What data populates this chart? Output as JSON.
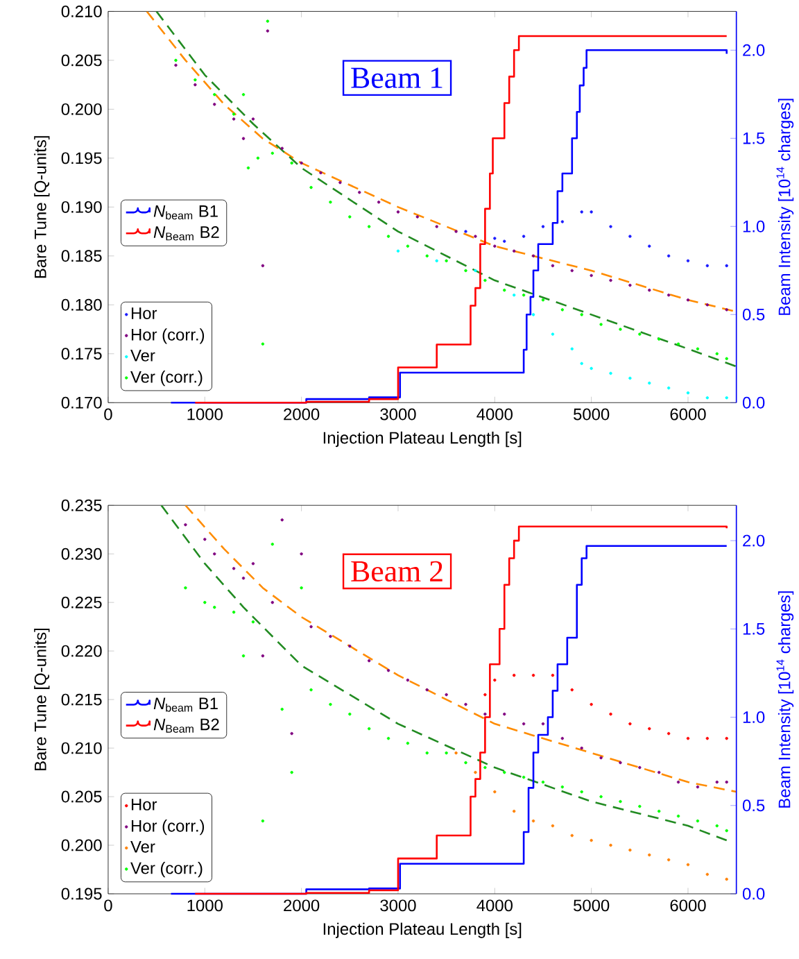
{
  "chart_data": [
    {
      "type": "scatter",
      "annotations": [
        "Beam 1"
      ],
      "xlabel": "Injection Plateau Length [s]",
      "ylabel": "Bare Tune [Q-units]",
      "y2label": "Beam Intensity [10$^{14}$ charges]",
      "xlim": [
        0,
        6500
      ],
      "xticks": [
        0,
        1000,
        2000,
        3000,
        4000,
        5000,
        6000
      ],
      "ylim": [
        0.17,
        0.21
      ],
      "yticks": [
        {
          "value": 0.17,
          "label": "0.170"
        },
        {
          "value": 0.175,
          "label": "0.175"
        },
        {
          "value": 0.18,
          "label": "0.180"
        },
        {
          "value": 0.185,
          "label": "0.185"
        },
        {
          "value": 0.19,
          "label": "0.190"
        },
        {
          "value": 0.195,
          "label": "0.195"
        },
        {
          "value": 0.2,
          "label": "0.200"
        },
        {
          "value": 0.205,
          "label": "0.205"
        },
        {
          "value": 0.21,
          "label": "0.210"
        }
      ],
      "y2lim": [
        0,
        2.22
      ],
      "y2ticks": [
        {
          "value": 0,
          "label": "0.0"
        },
        {
          "value": 0.5,
          "label": "0.5"
        },
        {
          "value": 1,
          "label": "1.0"
        },
        {
          "value": 1.5,
          "label": "1.5"
        },
        {
          "value": 2,
          "label": "2.0"
        }
      ],
      "legend": "left",
      "marker": "circle",
      "series": [
        {
          "name": "*N*$_{beam}$ B1",
          "type": "step",
          "axis": "y2",
          "marker": "none",
          "color": "#0000ff",
          "line_style": "solid",
          "x": [
            650,
            2050,
            2700,
            3020,
            4300,
            4330,
            4370,
            4400,
            4450,
            4600,
            4650,
            4700,
            4800,
            4850,
            4880,
            4920,
            4950,
            6400
          ],
          "values": [
            0,
            0.02,
            0.03,
            0.17,
            0.3,
            0.5,
            0.6,
            0.75,
            0.9,
            1.02,
            1.2,
            1.3,
            1.5,
            1.65,
            1.8,
            1.9,
            2.0,
            1.98
          ]
        },
        {
          "name": "*N*$_{Beam}$ B2",
          "type": "step",
          "axis": "y2",
          "marker": "none",
          "color": "#ff0000",
          "line_style": "solid",
          "x": [
            900,
            2050,
            2700,
            3000,
            3400,
            3750,
            3800,
            3850,
            3900,
            3950,
            3980,
            4100,
            4150,
            4200,
            4250,
            6400
          ],
          "values": [
            0,
            0.005,
            0.02,
            0.2,
            0.33,
            0.55,
            0.65,
            0.9,
            1.1,
            1.3,
            1.5,
            1.7,
            1.85,
            2.0,
            2.08,
            2.08
          ]
        },
        {
          "name": "Hor",
          "color": "#1a1aff",
          "x": [
            3700,
            4000,
            4100,
            4300,
            4500,
            4700,
            4900,
            5000,
            5200,
            5400,
            5600,
            5800,
            6000,
            6200,
            6400
          ],
          "values": [
            0.1875,
            0.1868,
            0.1865,
            0.187,
            0.188,
            0.1885,
            0.1895,
            0.1895,
            0.188,
            0.187,
            0.186,
            0.185,
            0.1845,
            0.184,
            0.184
          ]
        },
        {
          "name": "Hor (corr.)",
          "color": "#800080",
          "x": [
            700,
            900,
            1100,
            1300,
            1400,
            1500,
            1600,
            1650,
            1800,
            2000,
            2200,
            2400,
            2600,
            2800,
            3000,
            3200,
            3400,
            3600,
            3800,
            4000,
            4200,
            4400,
            4600,
            4800,
            5000,
            5200,
            5400,
            5600,
            5800,
            6000,
            6200,
            6400
          ],
          "values": [
            0.2045,
            0.2025,
            0.2005,
            0.199,
            0.197,
            0.199,
            0.184,
            0.208,
            0.196,
            0.1945,
            0.1935,
            0.1925,
            0.1915,
            0.1905,
            0.1895,
            0.189,
            0.188,
            0.1875,
            0.187,
            0.186,
            0.1855,
            0.185,
            0.184,
            0.1835,
            0.183,
            0.1825,
            0.182,
            0.1815,
            0.181,
            0.1805,
            0.18,
            0.1795
          ]
        },
        {
          "name": "Ver",
          "color": "#00ffff",
          "x": [
            3000,
            3400,
            3800,
            4200,
            4400,
            4600,
            4800,
            4900,
            5000,
            5200,
            5400,
            5600,
            5800,
            6000,
            6200,
            6400
          ],
          "values": [
            0.1855,
            0.1845,
            0.1835,
            0.181,
            0.179,
            0.177,
            0.1755,
            0.174,
            0.1735,
            0.173,
            0.1725,
            0.172,
            0.1715,
            0.171,
            0.1705,
            0.1705
          ]
        },
        {
          "name": "Ver (corr.)",
          "color": "#00ff00",
          "x": [
            700,
            900,
            1100,
            1300,
            1400,
            1450,
            1550,
            1600,
            1650,
            1700,
            1900,
            2100,
            2300,
            2500,
            2700,
            2900,
            3100,
            3300,
            3500,
            3700,
            3900,
            4100,
            4300,
            4500,
            4700,
            4900,
            5100,
            5300,
            5500,
            5700,
            5900,
            6100,
            6300,
            6400
          ],
          "values": [
            0.205,
            0.203,
            0.2015,
            0.1995,
            0.2015,
            0.194,
            0.195,
            0.176,
            0.209,
            0.1955,
            0.1945,
            0.192,
            0.1905,
            0.189,
            0.188,
            0.187,
            0.186,
            0.185,
            0.1845,
            0.1835,
            0.1825,
            0.1815,
            0.181,
            0.1805,
            0.1795,
            0.179,
            0.178,
            0.1775,
            0.177,
            0.1765,
            0.176,
            0.1755,
            0.175,
            0.1745
          ]
        },
        {
          "type": "line",
          "marker": "none",
          "color": "#ff8c00",
          "line_style": "dashed",
          "x": [
            400,
            800,
            1200,
            1600,
            2000,
            3000,
            4000,
            5000,
            6000,
            6500
          ],
          "values": [
            0.21,
            0.205,
            0.2005,
            0.197,
            0.1945,
            0.19,
            0.186,
            0.1835,
            0.1805,
            0.1793
          ]
        },
        {
          "type": "line",
          "marker": "none",
          "color": "#228b22",
          "line_style": "dashed",
          "x": [
            500,
            1000,
            1500,
            2000,
            3000,
            4000,
            5000,
            6000,
            6500
          ],
          "values": [
            0.21,
            0.2035,
            0.1985,
            0.194,
            0.1875,
            0.1825,
            0.179,
            0.1755,
            0.1737
          ]
        }
      ]
    },
    {
      "type": "scatter",
      "annotations": [
        "Beam 2"
      ],
      "xlabel": "Injection Plateau Length [s]",
      "ylabel": "Bare Tune [Q-units]",
      "y2label": "Beam Intensity [10$^{14}$ charges]",
      "xlim": [
        0,
        6500
      ],
      "xticks": [
        0,
        1000,
        2000,
        3000,
        4000,
        5000,
        6000
      ],
      "ylim": [
        0.195,
        0.235
      ],
      "yticks": [
        {
          "value": 0.195,
          "label": "0.195"
        },
        {
          "value": 0.2,
          "label": "0.200"
        },
        {
          "value": 0.205,
          "label": "0.205"
        },
        {
          "value": 0.21,
          "label": "0.210"
        },
        {
          "value": 0.215,
          "label": "0.215"
        },
        {
          "value": 0.22,
          "label": "0.220"
        },
        {
          "value": 0.225,
          "label": "0.225"
        },
        {
          "value": 0.23,
          "label": "0.230"
        },
        {
          "value": 0.235,
          "label": "0.235"
        }
      ],
      "y2lim": [
        0,
        2.2
      ],
      "y2ticks": [
        {
          "value": 0,
          "label": "0.0"
        },
        {
          "value": 0.5,
          "label": "0.5"
        },
        {
          "value": 1,
          "label": "1.0"
        },
        {
          "value": 1.5,
          "label": "1.5"
        },
        {
          "value": 2,
          "label": "2.0"
        }
      ],
      "legend": "left",
      "marker": "circle",
      "series": [
        {
          "name": "*N*$_{beam}$ B1",
          "type": "step",
          "axis": "y2",
          "marker": "none",
          "color": "#0000ff",
          "line_style": "solid",
          "x": [
            650,
            2050,
            2700,
            3020,
            4300,
            4350,
            4400,
            4450,
            4550,
            4600,
            4650,
            4750,
            4850,
            4900,
            4950,
            6400
          ],
          "values": [
            0,
            0.025,
            0.03,
            0.17,
            0.35,
            0.6,
            0.8,
            0.9,
            1.0,
            1.15,
            1.3,
            1.45,
            1.75,
            1.9,
            1.97,
            1.97
          ]
        },
        {
          "name": "*N*$_{Beam}$ B2",
          "type": "step",
          "axis": "y2",
          "marker": "none",
          "color": "#ff0000",
          "line_style": "solid",
          "x": [
            900,
            2050,
            2700,
            3000,
            3400,
            3750,
            3800,
            3850,
            3900,
            3950,
            4050,
            4100,
            4150,
            4200,
            4250,
            6400
          ],
          "values": [
            0,
            0.005,
            0.02,
            0.2,
            0.33,
            0.55,
            0.65,
            0.8,
            1.0,
            1.3,
            1.5,
            1.75,
            1.9,
            2.0,
            2.08,
            2.07
          ]
        },
        {
          "name": "Hor",
          "color": "#ff0000",
          "x": [
            3900,
            4000,
            4200,
            4400,
            4600,
            4800,
            5000,
            5200,
            5400,
            5600,
            5800,
            6000,
            6200,
            6400
          ],
          "values": [
            0.2155,
            0.217,
            0.2175,
            0.2175,
            0.2175,
            0.216,
            0.2145,
            0.2135,
            0.2125,
            0.212,
            0.2115,
            0.211,
            0.211,
            0.211
          ]
        },
        {
          "name": "Hor (corr.)",
          "color": "#800080",
          "x": [
            800,
            1000,
            1100,
            1300,
            1400,
            1500,
            1600,
            1700,
            1800,
            1900,
            2000,
            2100,
            2300,
            2500,
            2700,
            2900,
            3100,
            3300,
            3500,
            3700,
            3900,
            4100,
            4300,
            4500,
            4700,
            4900,
            5100,
            5300,
            5500,
            5700,
            5900,
            6100,
            6300,
            6400
          ],
          "values": [
            0.233,
            0.2315,
            0.23,
            0.2285,
            0.2275,
            0.229,
            0.2195,
            0.225,
            0.2335,
            0.2115,
            0.23,
            0.2225,
            0.2215,
            0.2205,
            0.219,
            0.218,
            0.217,
            0.216,
            0.2155,
            0.2145,
            0.2135,
            0.2135,
            0.2125,
            0.2125,
            0.211,
            0.21,
            0.209,
            0.2085,
            0.208,
            0.2075,
            0.2065,
            0.206,
            0.2065,
            0.2065
          ]
        },
        {
          "name": "Ver",
          "color": "#ff8000",
          "x": [
            3600,
            3800,
            4000,
            4200,
            4400,
            4600,
            4800,
            5000,
            5200,
            5400,
            5600,
            5800,
            6000,
            6200,
            6400
          ],
          "values": [
            0.2095,
            0.2075,
            0.2055,
            0.2035,
            0.2025,
            0.202,
            0.201,
            0.2005,
            0.2,
            0.1995,
            0.199,
            0.1985,
            0.198,
            0.197,
            0.1965
          ]
        },
        {
          "name": "Ver (corr.)",
          "color": "#00ff00",
          "x": [
            800,
            1000,
            1100,
            1300,
            1400,
            1500,
            1600,
            1700,
            1800,
            1900,
            2000,
            2100,
            2300,
            2500,
            2700,
            2900,
            3100,
            3300,
            3500,
            3700,
            3900,
            4100,
            4300,
            4500,
            4700,
            4900,
            5100,
            5300,
            5500,
            5700,
            5900,
            6100,
            6300,
            6400
          ],
          "values": [
            0.2265,
            0.225,
            0.2245,
            0.224,
            0.2195,
            0.223,
            0.2025,
            0.231,
            0.214,
            0.2075,
            0.2265,
            0.216,
            0.2145,
            0.2135,
            0.212,
            0.211,
            0.2105,
            0.2095,
            0.2095,
            0.2085,
            0.208,
            0.2075,
            0.207,
            0.2065,
            0.206,
            0.2055,
            0.205,
            0.2045,
            0.204,
            0.2035,
            0.203,
            0.2025,
            0.202,
            0.2015
          ]
        },
        {
          "type": "line",
          "marker": "none",
          "color": "#ff8c00",
          "line_style": "dashed",
          "x": [
            800,
            1200,
            1600,
            2000,
            3000,
            4000,
            5000,
            6000,
            6500
          ],
          "values": [
            0.235,
            0.2305,
            0.2265,
            0.2235,
            0.2175,
            0.2125,
            0.2095,
            0.2065,
            0.2055
          ]
        },
        {
          "type": "line",
          "marker": "none",
          "color": "#228b22",
          "line_style": "dashed",
          "x": [
            550,
            1000,
            1400,
            2000,
            3000,
            4000,
            5000,
            6000,
            6400
          ],
          "values": [
            0.235,
            0.229,
            0.2245,
            0.2185,
            0.2125,
            0.208,
            0.2045,
            0.202,
            0.2005
          ]
        }
      ]
    }
  ]
}
